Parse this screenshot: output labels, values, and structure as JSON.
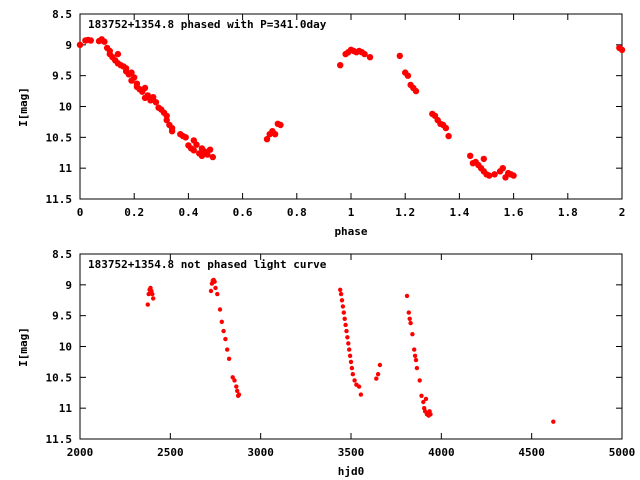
{
  "chart_data": [
    {
      "type": "scatter",
      "title": "183752+1354.8 phased with P=341.0day",
      "xlabel": "phase",
      "ylabel": "I[mag]",
      "xlim": [
        0,
        2
      ],
      "ylim": [
        11.5,
        8.5
      ],
      "y_inverted": true,
      "x_ticks": [
        0,
        0.2,
        0.4,
        0.6,
        0.8,
        1,
        1.2,
        1.4,
        1.6,
        1.8,
        2
      ],
      "y_ticks": [
        8.5,
        9,
        9.5,
        10,
        10.5,
        11,
        11.5
      ],
      "x_tick_labels": [
        "0",
        "0.2",
        "0.4",
        "0.6",
        "0.8",
        "1",
        "1.2",
        "1.4",
        "1.6",
        "1.8",
        "2"
      ],
      "y_tick_labels": [
        "8.5",
        "9",
        "9.5",
        "10",
        "10.5",
        "11",
        "11.5"
      ],
      "grid": false,
      "marker_color": "#ff0000",
      "points": [
        [
          0.0,
          9.0
        ],
        [
          0.02,
          8.93
        ],
        [
          0.03,
          8.92
        ],
        [
          0.04,
          8.93
        ],
        [
          0.07,
          8.94
        ],
        [
          0.08,
          8.91
        ],
        [
          0.09,
          8.95
        ],
        [
          0.1,
          9.05
        ],
        [
          0.11,
          9.1
        ],
        [
          0.11,
          9.15
        ],
        [
          0.12,
          9.2
        ],
        [
          0.13,
          9.25
        ],
        [
          0.14,
          9.15
        ],
        [
          0.14,
          9.3
        ],
        [
          0.15,
          9.33
        ],
        [
          0.16,
          9.35
        ],
        [
          0.17,
          9.38
        ],
        [
          0.17,
          9.43
        ],
        [
          0.18,
          9.48
        ],
        [
          0.19,
          9.45
        ],
        [
          0.19,
          9.58
        ],
        [
          0.2,
          9.53
        ],
        [
          0.21,
          9.63
        ],
        [
          0.21,
          9.68
        ],
        [
          0.22,
          9.72
        ],
        [
          0.23,
          9.76
        ],
        [
          0.24,
          9.7
        ],
        [
          0.24,
          9.86
        ],
        [
          0.25,
          9.82
        ],
        [
          0.26,
          9.9
        ],
        [
          0.27,
          9.85
        ],
        [
          0.28,
          9.93
        ],
        [
          0.29,
          10.02
        ],
        [
          0.3,
          10.05
        ],
        [
          0.31,
          10.1
        ],
        [
          0.32,
          10.15
        ],
        [
          0.32,
          10.22
        ],
        [
          0.33,
          10.3
        ],
        [
          0.34,
          10.35
        ],
        [
          0.34,
          10.4
        ],
        [
          0.37,
          10.45
        ],
        [
          0.38,
          10.48
        ],
        [
          0.39,
          10.5
        ],
        [
          0.4,
          10.63
        ],
        [
          0.41,
          10.68
        ],
        [
          0.42,
          10.55
        ],
        [
          0.42,
          10.71
        ],
        [
          0.43,
          10.62
        ],
        [
          0.44,
          10.76
        ],
        [
          0.45,
          10.8
        ],
        [
          0.45,
          10.68
        ],
        [
          0.46,
          10.73
        ],
        [
          0.47,
          10.78
        ],
        [
          0.48,
          10.7
        ],
        [
          0.49,
          10.82
        ],
        [
          0.69,
          10.53
        ],
        [
          0.7,
          10.45
        ],
        [
          0.71,
          10.4
        ],
        [
          0.72,
          10.45
        ],
        [
          0.73,
          10.28
        ],
        [
          0.74,
          10.3
        ],
        [
          0.96,
          9.33
        ],
        [
          0.98,
          9.15
        ],
        [
          0.99,
          9.12
        ],
        [
          1.0,
          9.08
        ],
        [
          1.01,
          9.1
        ],
        [
          1.02,
          9.12
        ],
        [
          1.03,
          9.1
        ],
        [
          1.04,
          9.12
        ],
        [
          1.05,
          9.15
        ],
        [
          1.07,
          9.2
        ],
        [
          1.18,
          9.18
        ],
        [
          1.2,
          9.45
        ],
        [
          1.21,
          9.5
        ],
        [
          1.22,
          9.65
        ],
        [
          1.23,
          9.7
        ],
        [
          1.24,
          9.75
        ],
        [
          1.3,
          10.12
        ],
        [
          1.31,
          10.15
        ],
        [
          1.32,
          10.22
        ],
        [
          1.33,
          10.28
        ],
        [
          1.34,
          10.3
        ],
        [
          1.35,
          10.35
        ],
        [
          1.36,
          10.48
        ],
        [
          1.44,
          10.8
        ],
        [
          1.45,
          10.92
        ],
        [
          1.46,
          10.9
        ],
        [
          1.47,
          10.95
        ],
        [
          1.48,
          11.0
        ],
        [
          1.49,
          10.85
        ],
        [
          1.49,
          11.05
        ],
        [
          1.5,
          11.1
        ],
        [
          1.51,
          11.12
        ],
        [
          1.53,
          11.1
        ],
        [
          1.55,
          11.05
        ],
        [
          1.56,
          11.0
        ],
        [
          1.57,
          11.15
        ],
        [
          1.58,
          11.08
        ],
        [
          1.59,
          11.1
        ],
        [
          1.6,
          11.12
        ],
        [
          1.99,
          9.05
        ],
        [
          2.0,
          9.08
        ]
      ]
    },
    {
      "type": "scatter",
      "title": "183752+1354.8 not phased light curve",
      "xlabel": "hjd0",
      "ylabel": "I[mag]",
      "xlim": [
        2000,
        5000
      ],
      "ylim": [
        11.5,
        8.5
      ],
      "y_inverted": true,
      "x_ticks": [
        2000,
        2500,
        3000,
        3500,
        4000,
        4500,
        5000
      ],
      "y_ticks": [
        8.5,
        9,
        9.5,
        10,
        10.5,
        11,
        11.5
      ],
      "x_tick_labels": [
        "2000",
        "2500",
        "3000",
        "3500",
        "4000",
        "4500",
        "5000"
      ],
      "y_tick_labels": [
        "8.5",
        "9",
        "9.5",
        "10",
        "10.5",
        "11",
        "11.5"
      ],
      "grid": false,
      "marker_color": "#ff0000",
      "points": [
        [
          2375,
          9.32
        ],
        [
          2380,
          9.15
        ],
        [
          2385,
          9.08
        ],
        [
          2390,
          9.05
        ],
        [
          2395,
          9.1
        ],
        [
          2400,
          9.15
        ],
        [
          2405,
          9.22
        ],
        [
          2725,
          9.1
        ],
        [
          2730,
          8.98
        ],
        [
          2735,
          8.93
        ],
        [
          2740,
          8.92
        ],
        [
          2745,
          8.95
        ],
        [
          2750,
          9.05
        ],
        [
          2760,
          9.15
        ],
        [
          2775,
          9.4
        ],
        [
          2785,
          9.6
        ],
        [
          2795,
          9.75
        ],
        [
          2805,
          9.88
        ],
        [
          2815,
          10.05
        ],
        [
          2825,
          10.2
        ],
        [
          2845,
          10.5
        ],
        [
          2855,
          10.55
        ],
        [
          2865,
          10.65
        ],
        [
          2870,
          10.72
        ],
        [
          2875,
          10.8
        ],
        [
          2880,
          10.78
        ],
        [
          3440,
          9.08
        ],
        [
          3445,
          9.15
        ],
        [
          3450,
          9.25
        ],
        [
          3455,
          9.35
        ],
        [
          3460,
          9.45
        ],
        [
          3465,
          9.55
        ],
        [
          3470,
          9.65
        ],
        [
          3475,
          9.75
        ],
        [
          3480,
          9.85
        ],
        [
          3485,
          9.95
        ],
        [
          3490,
          10.05
        ],
        [
          3495,
          10.15
        ],
        [
          3500,
          10.25
        ],
        [
          3505,
          10.35
        ],
        [
          3510,
          10.45
        ],
        [
          3520,
          10.55
        ],
        [
          3530,
          10.62
        ],
        [
          3545,
          10.65
        ],
        [
          3555,
          10.78
        ],
        [
          3640,
          10.52
        ],
        [
          3650,
          10.45
        ],
        [
          3660,
          10.3
        ],
        [
          3810,
          9.18
        ],
        [
          3820,
          9.45
        ],
        [
          3825,
          9.55
        ],
        [
          3830,
          9.62
        ],
        [
          3840,
          9.8
        ],
        [
          3850,
          10.05
        ],
        [
          3855,
          10.15
        ],
        [
          3860,
          10.22
        ],
        [
          3865,
          10.35
        ],
        [
          3880,
          10.55
        ],
        [
          3890,
          10.8
        ],
        [
          3900,
          10.9
        ],
        [
          3905,
          11.0
        ],
        [
          3910,
          11.05
        ],
        [
          3915,
          10.85
        ],
        [
          3920,
          11.1
        ],
        [
          3925,
          11.08
        ],
        [
          3930,
          11.12
        ],
        [
          3935,
          11.05
        ],
        [
          3940,
          11.1
        ],
        [
          4620,
          11.22
        ]
      ]
    }
  ]
}
